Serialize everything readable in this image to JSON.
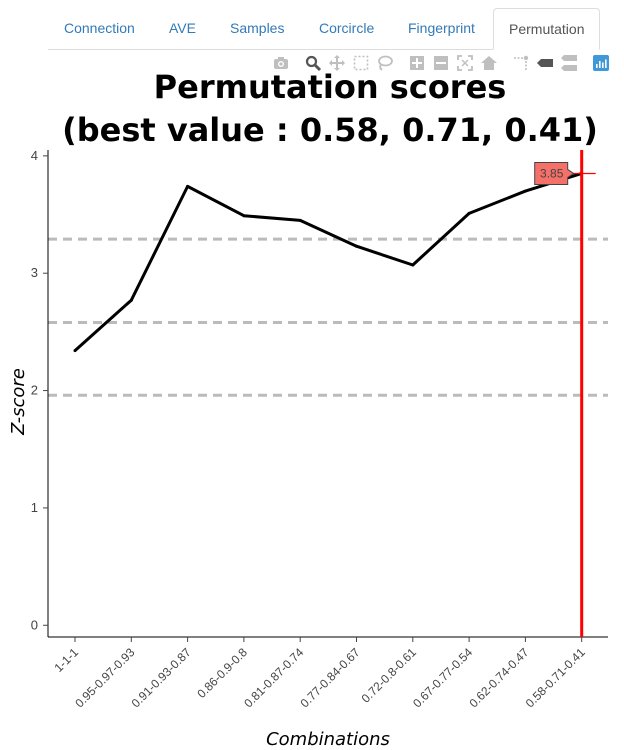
{
  "tabs": [
    {
      "label": "Connection",
      "active": false
    },
    {
      "label": "AVE",
      "active": false
    },
    {
      "label": "Samples",
      "active": false
    },
    {
      "label": "Corcircle",
      "active": false
    },
    {
      "label": "Fingerprint",
      "active": false
    },
    {
      "label": "Permutation",
      "active": true
    }
  ],
  "modebar": {
    "icons": [
      "camera-icon",
      "zoom-icon",
      "pan-icon",
      "box-select-icon",
      "lasso-icon",
      "zoom-in-icon",
      "zoom-out-icon",
      "autoscale-icon",
      "reset-axes-icon",
      "spike-lines-icon",
      "hover-closest-icon",
      "hover-compare-icon",
      "plotly-logo-icon"
    ],
    "active": "zoom-icon"
  },
  "chart_data": {
    "type": "line",
    "title": "Permutation scores",
    "subtitle": "(best value : 0.58, 0.71, 0.41)",
    "xlabel": "Combinations",
    "ylabel": "Z-score",
    "categories": [
      "1-1-1",
      "0.95-0.97-0.93",
      "0.91-0.93-0.87",
      "0.86-0.9-0.8",
      "0.81-0.87-0.74",
      "0.77-0.84-0.67",
      "0.72-0.8-0.61",
      "0.67-0.77-0.54",
      "0.62-0.74-0.47",
      "0.58-0.71-0.41"
    ],
    "values": [
      2.34,
      2.77,
      3.74,
      3.49,
      3.45,
      3.23,
      3.07,
      3.51,
      3.7,
      3.85
    ],
    "ylim": [
      -0.1,
      4.05
    ],
    "yticks": [
      0,
      1,
      2,
      3,
      4
    ],
    "reference_lines": [
      1.96,
      2.58,
      3.29
    ],
    "best_index": 9,
    "hover_label": "3.85",
    "colors": {
      "line": "#000000",
      "reference": "#bbbbbb",
      "best": "#ff0000",
      "hover": "#f47068"
    },
    "grid": false,
    "legend": "none"
  }
}
